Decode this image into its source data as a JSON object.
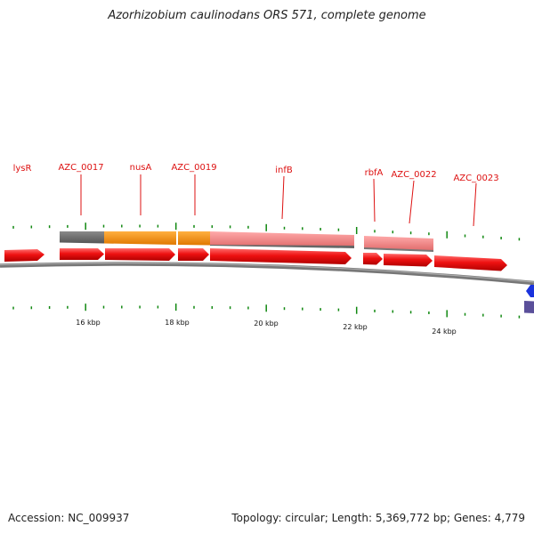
{
  "title": "Azorhizobium caulinodans ORS 571, complete genome",
  "footer": {
    "accession": "Accession: NC_009937",
    "stats": "Topology: circular; Length: 5,369,772 bp; Genes: 4,779"
  },
  "colors": {
    "gene_arrow": "#ee1111",
    "gene_label": "#dd1111",
    "tick": "#118811",
    "backbone": "#888888",
    "feature_gray": "#666666",
    "feature_orange": "#f08c00",
    "feature_pink": "#f08080",
    "edge_blue": "#1a33dd",
    "edge_purple": "#5a4f9a"
  },
  "genes": [
    {
      "label": "lysR"
    },
    {
      "label": "AZC_0017"
    },
    {
      "label": "nusA"
    },
    {
      "label": "AZC_0019"
    },
    {
      "label": "infB"
    },
    {
      "label": "rbfA"
    },
    {
      "label": "AZC_0022"
    },
    {
      "label": "AZC_0023"
    }
  ],
  "ruler": {
    "labels": [
      "16 kbp",
      "18 kbp",
      "20 kbp",
      "22 kbp",
      "24 kbp"
    ]
  }
}
